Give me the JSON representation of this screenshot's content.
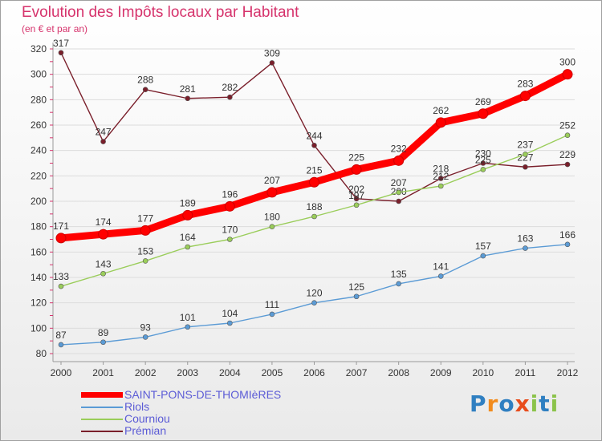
{
  "chart_data": {
    "type": "line",
    "title": "Evolution des Impôts locaux par Habitant",
    "subtitle": "(en € et par an)",
    "xlabel": "",
    "ylabel": "",
    "ylim": [
      80,
      320
    ],
    "y_ticks": [
      80,
      100,
      120,
      140,
      160,
      180,
      200,
      220,
      240,
      260,
      280,
      300,
      320
    ],
    "x": [
      "2000",
      "2001",
      "2002",
      "2003",
      "2004",
      "2005",
      "2006",
      "2007",
      "2008",
      "2009",
      "2010",
      "2011",
      "2012"
    ],
    "series": [
      {
        "name": "Prémian",
        "color": "#7a1f2b",
        "values": [
          317,
          247,
          288,
          281,
          282,
          309,
          244,
          202,
          200,
          218,
          230,
          227,
          229
        ]
      },
      {
        "name": "Riols",
        "color": "#5b9bd5",
        "values": [
          87,
          89,
          93,
          101,
          104,
          111,
          120,
          125,
          135,
          141,
          157,
          163,
          166
        ]
      },
      {
        "name": "Courniou",
        "color": "#9acd5a",
        "values": [
          133,
          143,
          153,
          164,
          170,
          180,
          188,
          197,
          207,
          212,
          225,
          237,
          252
        ]
      },
      {
        "name": "SAINT-PONS-DE-THOMIèRES",
        "color": "#ff0000",
        "values": [
          171,
          174,
          177,
          189,
          196,
          207,
          215,
          225,
          232,
          262,
          269,
          283,
          300
        ]
      }
    ],
    "legend": {
      "placement": "bottom-left",
      "entries": [
        "SAINT-PONS-DE-THOMIèRES",
        "Riols",
        "Courniou",
        "Prémian"
      ]
    }
  },
  "legend_colors": [
    "#ff0000",
    "#5b9bd5",
    "#9acd5a",
    "#7a1f2b"
  ],
  "brand": {
    "parts": [
      "P",
      "r",
      "o",
      "x",
      "i",
      "t",
      "i"
    ],
    "colors": [
      "#2f7fc1",
      "#f28c1e",
      "#2f7fc1",
      "#e84c1c",
      "#8bc34a",
      "#2f7fc1",
      "#8bc34a"
    ]
  }
}
